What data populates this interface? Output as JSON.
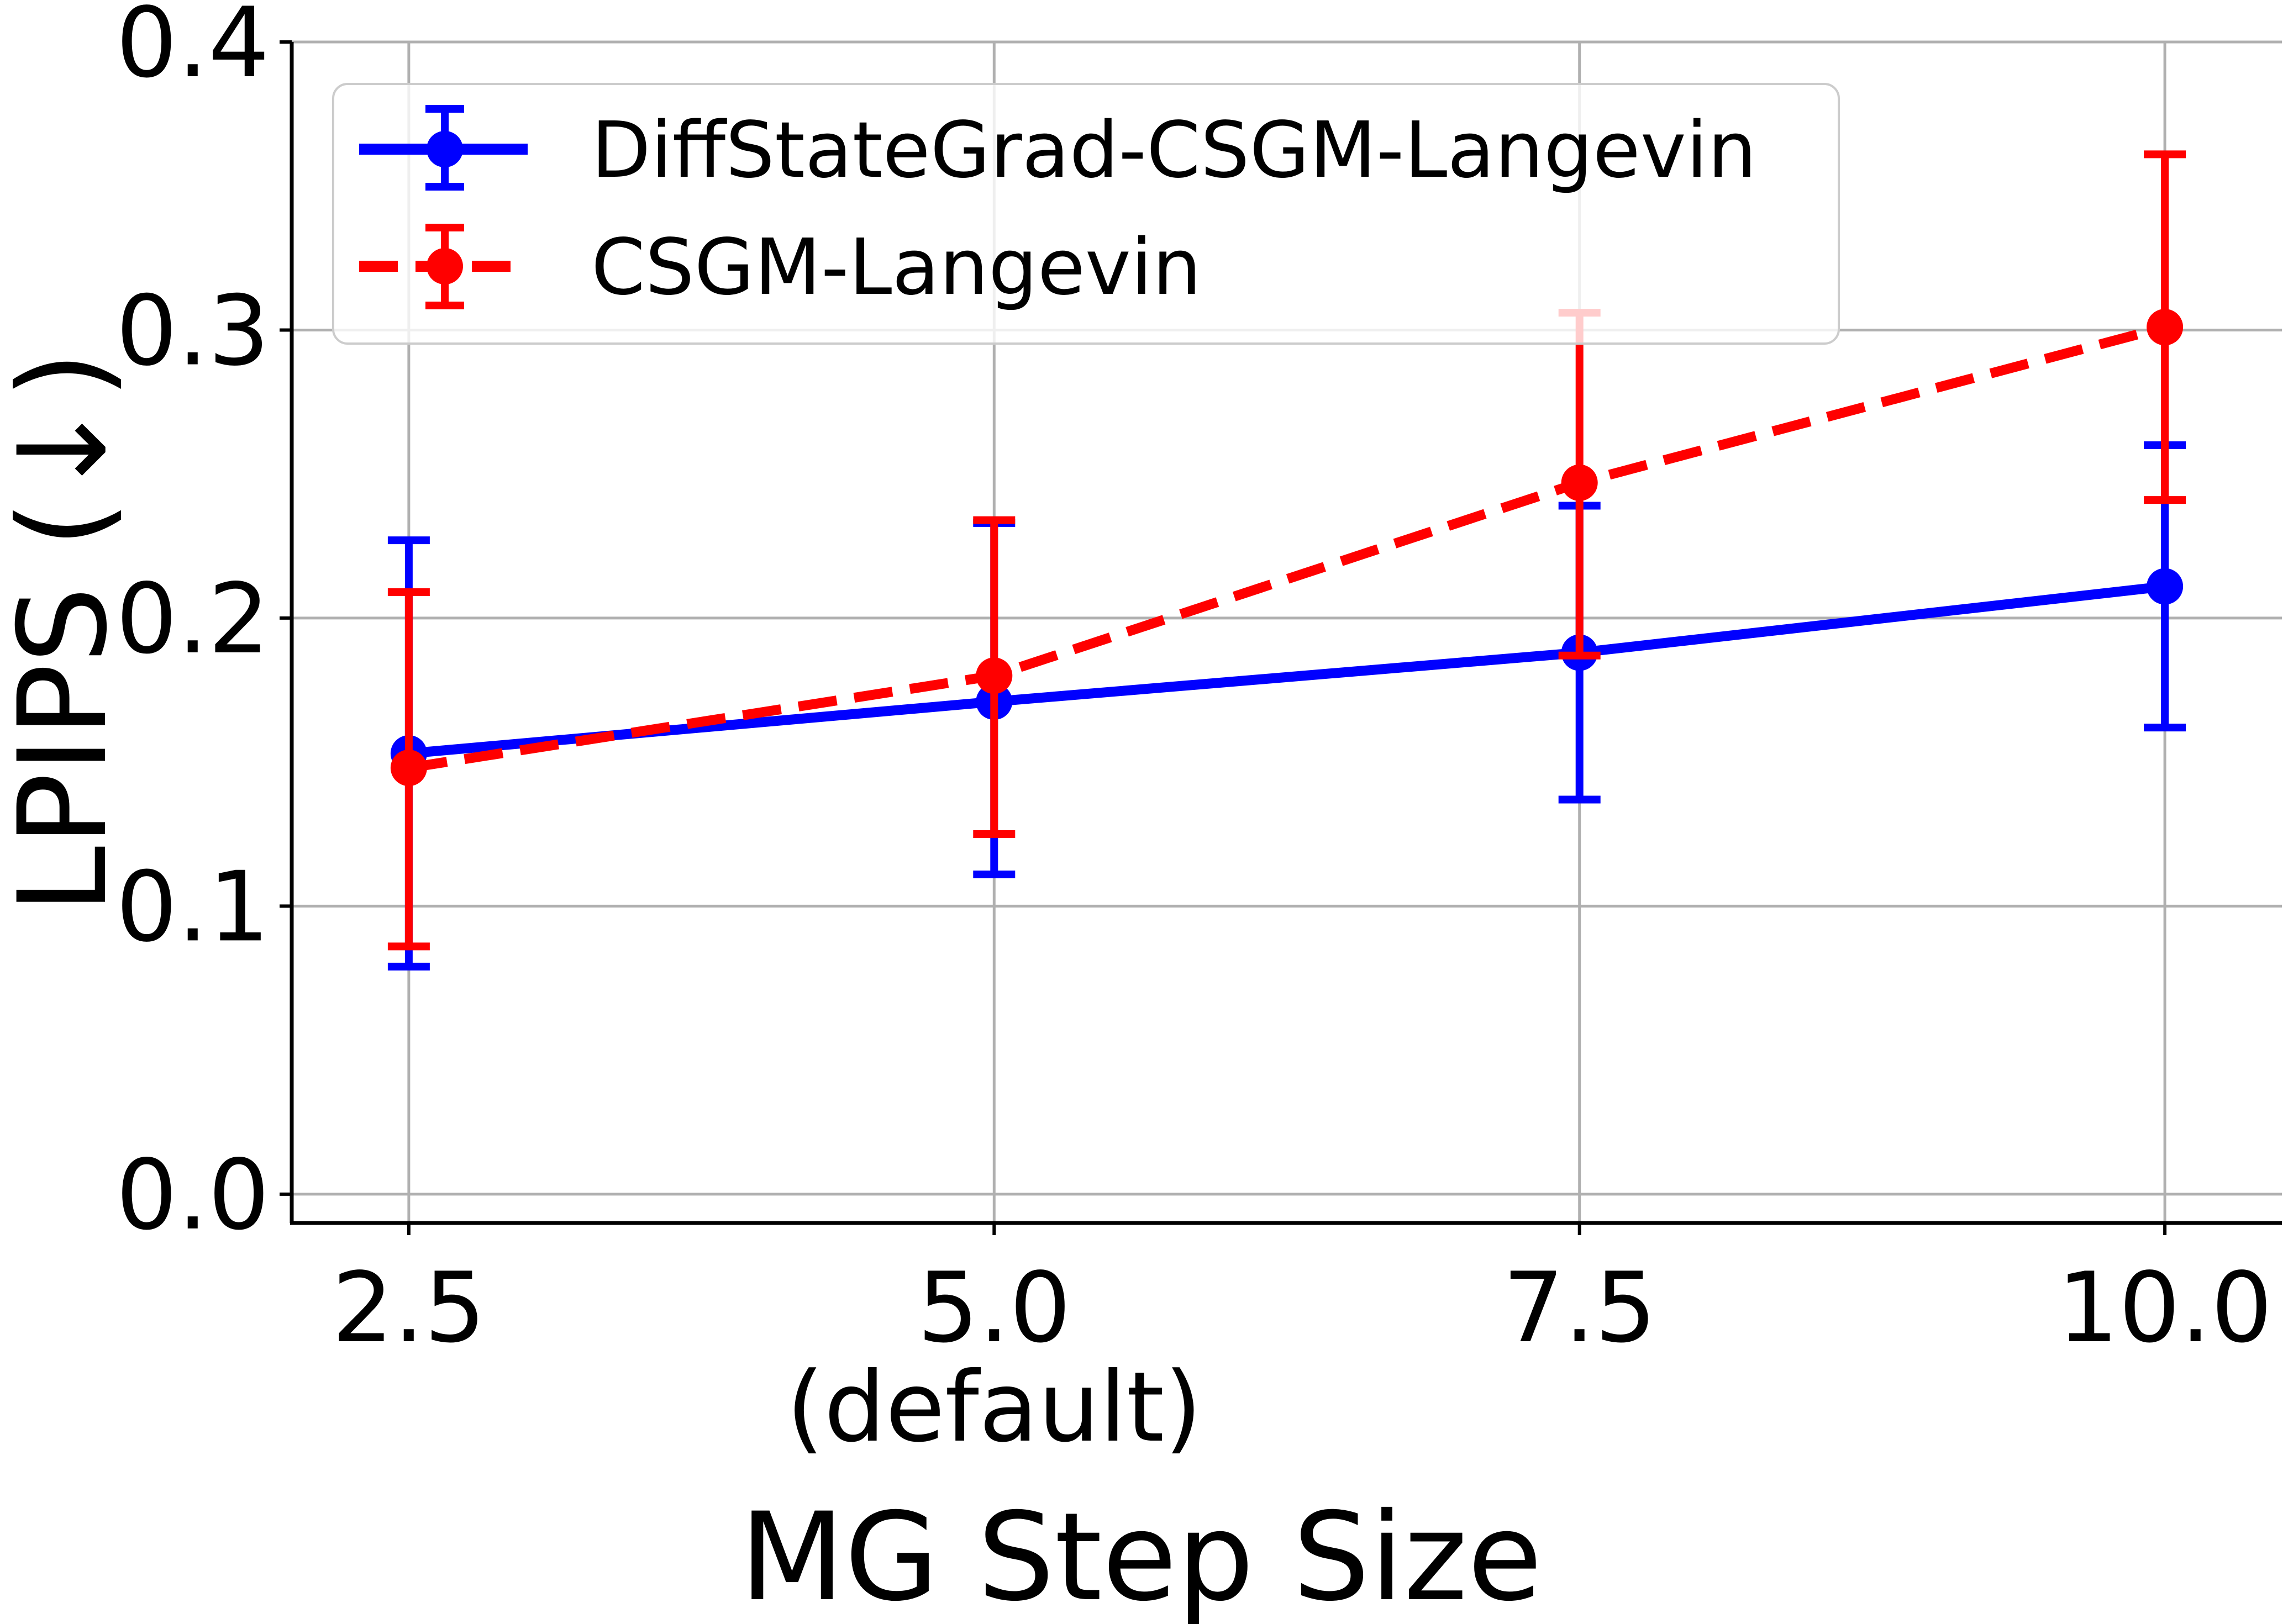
{
  "chart_data": {
    "type": "line",
    "title": "",
    "xlabel": "MG Step Size",
    "ylabel": "LPIPS (↓)",
    "x": [
      2.5,
      5.0,
      7.5,
      10.0
    ],
    "x_tick_labels": [
      "2.5",
      "5.0",
      "7.5",
      "10.0"
    ],
    "x_tick_sublabels": [
      "",
      "(default)",
      "",
      ""
    ],
    "y_ticks": [
      0.0,
      0.1,
      0.2,
      0.3,
      0.4
    ],
    "y_tick_labels": [
      "0.0",
      "0.1",
      "0.2",
      "0.3",
      "0.4"
    ],
    "xlim": [
      2.0,
      10.5
    ],
    "ylim": [
      -0.01,
      0.4
    ],
    "grid": true,
    "legend_position": "top-left",
    "series": [
      {
        "name": "DiffStateGrad-CSGM-Langevin",
        "color": "#0000ff",
        "line_style": "solid",
        "values": [
          0.153,
          0.171,
          0.188,
          0.211
        ],
        "error_low": [
          0.079,
          0.111,
          0.137,
          0.162
        ],
        "error_high": [
          0.227,
          0.233,
          0.239,
          0.26
        ]
      },
      {
        "name": "CSGM-Langevin",
        "color": "#ff0000",
        "line_style": "dashed",
        "values": [
          0.148,
          0.18,
          0.247,
          0.301
        ],
        "error_low": [
          0.086,
          0.125,
          0.187,
          0.241
        ],
        "error_high": [
          0.209,
          0.234,
          0.306,
          0.361
        ]
      }
    ]
  }
}
